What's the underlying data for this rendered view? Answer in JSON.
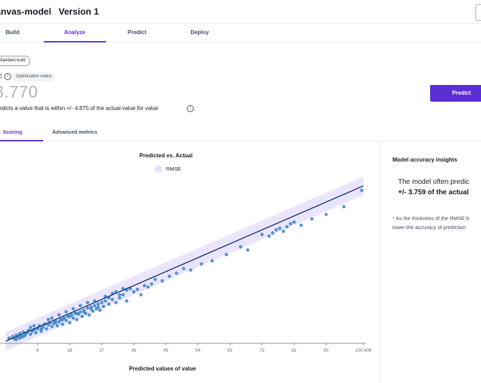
{
  "header": {
    "model_name": "anvas-model",
    "version": "Version 1"
  },
  "tabs": [
    {
      "label": "Build"
    },
    {
      "label": "Analyze"
    },
    {
      "label": "Predict"
    },
    {
      "label": "Deploy"
    }
  ],
  "summary": {
    "build_badge": "Standard build",
    "metric_prefix": "E",
    "metric_badge": "Optimization metric",
    "metric_value": "3.770",
    "description": "edicts a value that is within +/- 4.875 of the actual value for value",
    "predict_button": "Predict"
  },
  "subtabs": [
    {
      "label": "Scoring"
    },
    {
      "label": "Advanced metrics"
    }
  ],
  "insights": {
    "title": "Model accuracy insights",
    "line1": "The model often predic",
    "line2": "+/- 3.759 of the actual",
    "note1": "* As the thickness of the RMSE b",
    "note2": "lower the accuracy of prediction"
  },
  "chart_data": {
    "type": "scatter",
    "title": "Predicted vs. Actual",
    "legend": [
      "RMSE"
    ],
    "xlabel": "Predicted values of value",
    "x_ticks": [
      "9",
      "18",
      "27",
      "36",
      "45",
      "54",
      "63",
      "72",
      "81",
      "90",
      "100.409"
    ],
    "xlim": [
      0,
      100.409
    ],
    "ylim": [
      0,
      100.409
    ],
    "rmse": 3.759,
    "colors": {
      "points": "#3f8fd4",
      "line": "#0f2e6e",
      "band": "#e6e0fb"
    },
    "points": [
      [
        1,
        2
      ],
      [
        2,
        3
      ],
      [
        2.5,
        1.5
      ],
      [
        3,
        4
      ],
      [
        3.5,
        2.5
      ],
      [
        4,
        5
      ],
      [
        4.5,
        3
      ],
      [
        5,
        6
      ],
      [
        5.5,
        4
      ],
      [
        6,
        5.5
      ],
      [
        6.5,
        7
      ],
      [
        7,
        4.5
      ],
      [
        7.5,
        6.5
      ],
      [
        8,
        7.5
      ],
      [
        8.5,
        5.5
      ],
      [
        9,
        8
      ],
      [
        9.5,
        10
      ],
      [
        10,
        6.5
      ],
      [
        10.5,
        9
      ],
      [
        11,
        11
      ],
      [
        11.5,
        8
      ],
      [
        12,
        10.5
      ],
      [
        12.5,
        12
      ],
      [
        13,
        9.5
      ],
      [
        13.5,
        11.5
      ],
      [
        14,
        13
      ],
      [
        14.5,
        10
      ],
      [
        15,
        12.5
      ],
      [
        15.5,
        14
      ],
      [
        16,
        11
      ],
      [
        16.5,
        15
      ],
      [
        17,
        13.5
      ],
      [
        17.5,
        16
      ],
      [
        18,
        12
      ],
      [
        18.5,
        17
      ],
      [
        19,
        15
      ],
      [
        19.5,
        18
      ],
      [
        20,
        14
      ],
      [
        20.5,
        17.5
      ],
      [
        21,
        19
      ],
      [
        21.5,
        16
      ],
      [
        22,
        20
      ],
      [
        22.5,
        18
      ],
      [
        23,
        21.5
      ],
      [
        23.5,
        17
      ],
      [
        24,
        22
      ],
      [
        24.5,
        19.5
      ],
      [
        25,
        23
      ],
      [
        25.5,
        21
      ],
      [
        26,
        24
      ],
      [
        26.5,
        20
      ],
      [
        27,
        25
      ],
      [
        27.5,
        22.5
      ],
      [
        28,
        26
      ],
      [
        29,
        24
      ],
      [
        30,
        27
      ],
      [
        31,
        25
      ],
      [
        32,
        28
      ],
      [
        33,
        30
      ],
      [
        34,
        26
      ],
      [
        35,
        34
      ],
      [
        36,
        32
      ],
      [
        37,
        33.5
      ],
      [
        38,
        30
      ],
      [
        39,
        36
      ],
      [
        40,
        35
      ],
      [
        41,
        37
      ],
      [
        42,
        40
      ],
      [
        44,
        39
      ],
      [
        46,
        42
      ],
      [
        48,
        44
      ],
      [
        50,
        47
      ],
      [
        52,
        46
      ],
      [
        55,
        50
      ],
      [
        58,
        52
      ],
      [
        62,
        56
      ],
      [
        66,
        61
      ],
      [
        68,
        59
      ],
      [
        72,
        69
      ],
      [
        74,
        68
      ],
      [
        75,
        70
      ],
      [
        76,
        72
      ],
      [
        77,
        73
      ],
      [
        78,
        71
      ],
      [
        79,
        74
      ],
      [
        80,
        76
      ],
      [
        81,
        77
      ],
      [
        83,
        75
      ],
      [
        86,
        79
      ],
      [
        90,
        82
      ],
      [
        95,
        87
      ],
      [
        100,
        97.5
      ],
      [
        3,
        1
      ],
      [
        4,
        2
      ],
      [
        5,
        3
      ],
      [
        7,
        9
      ],
      [
        8,
        10
      ],
      [
        10,
        8
      ],
      [
        12,
        14
      ],
      [
        13,
        15
      ],
      [
        14,
        12
      ],
      [
        15,
        17
      ],
      [
        16,
        14
      ],
      [
        17,
        19
      ],
      [
        18,
        16
      ],
      [
        19,
        21
      ],
      [
        20,
        18
      ],
      [
        21,
        23
      ],
      [
        22,
        19
      ],
      [
        23,
        25
      ],
      [
        24,
        21
      ],
      [
        25,
        26
      ],
      [
        26,
        22
      ],
      [
        28,
        29
      ],
      [
        29,
        28
      ],
      [
        30,
        31
      ],
      [
        31,
        32
      ],
      [
        32,
        30
      ],
      [
        33,
        34
      ],
      [
        34,
        33
      ]
    ]
  }
}
